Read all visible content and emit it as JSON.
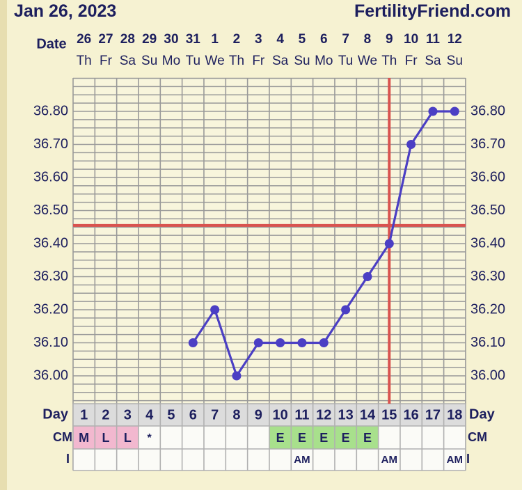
{
  "header": {
    "date": "Jan 26, 2023",
    "site": "FertilityFriend.com"
  },
  "colors": {
    "background": "#f6f2d2",
    "grid": "#999999",
    "text": "#1d1f5e",
    "line": "#4b3fc4",
    "coverline": "#d9534f",
    "menses": "#f2b8cf",
    "egg_white": "#a8e08c"
  },
  "labels": {
    "date": "Date",
    "day": "Day",
    "cm": "CM",
    "i": "I"
  },
  "chart_data": {
    "type": "line",
    "dates": [
      "26",
      "27",
      "28",
      "29",
      "30",
      "31",
      "1",
      "2",
      "3",
      "4",
      "5",
      "6",
      "7",
      "8",
      "9",
      "10",
      "11",
      "12"
    ],
    "weekdays": [
      "Th",
      "Fr",
      "Sa",
      "Su",
      "Mo",
      "Tu",
      "We",
      "Th",
      "Fr",
      "Sa",
      "Su",
      "Mo",
      "Tu",
      "We",
      "Th",
      "Fr",
      "Sa",
      "Su"
    ],
    "cycle_days": [
      1,
      2,
      3,
      4,
      5,
      6,
      7,
      8,
      9,
      10,
      11,
      12,
      13,
      14,
      15,
      16,
      17,
      18
    ],
    "temperatures": [
      null,
      null,
      null,
      null,
      null,
      36.1,
      36.2,
      36.0,
      36.1,
      36.1,
      36.1,
      36.1,
      36.2,
      36.3,
      36.4,
      36.7,
      36.8,
      36.8
    ],
    "y_ticks": [
      36.8,
      36.7,
      36.6,
      36.5,
      36.4,
      36.3,
      36.2,
      36.1,
      36.0
    ],
    "y_tick_labels": [
      "36.80",
      "36.70",
      "36.60",
      "36.50",
      "36.40",
      "36.30",
      "36.20",
      "36.10",
      "36.00"
    ],
    "ylim": [
      35.875,
      36.9
    ],
    "coverline": 36.455,
    "ovulation_day": 15,
    "cm": [
      "M",
      "L",
      "L",
      "*",
      "",
      "",
      "",
      "",
      "",
      "E",
      "E",
      "E",
      "E",
      "E",
      "",
      "",
      "",
      ""
    ],
    "cm_types": [
      "menses",
      "menses",
      "menses",
      "",
      "",
      "",
      "",
      "",
      "",
      "egg_white",
      "egg_white",
      "egg_white",
      "egg_white",
      "egg_white",
      "",
      "",
      "",
      ""
    ],
    "intercourse": [
      "",
      "",
      "",
      "",
      "",
      "",
      "",
      "",
      "",
      "",
      "AM",
      "",
      "",
      "",
      "AM",
      "",
      "",
      "AM"
    ],
    "grid": true
  }
}
